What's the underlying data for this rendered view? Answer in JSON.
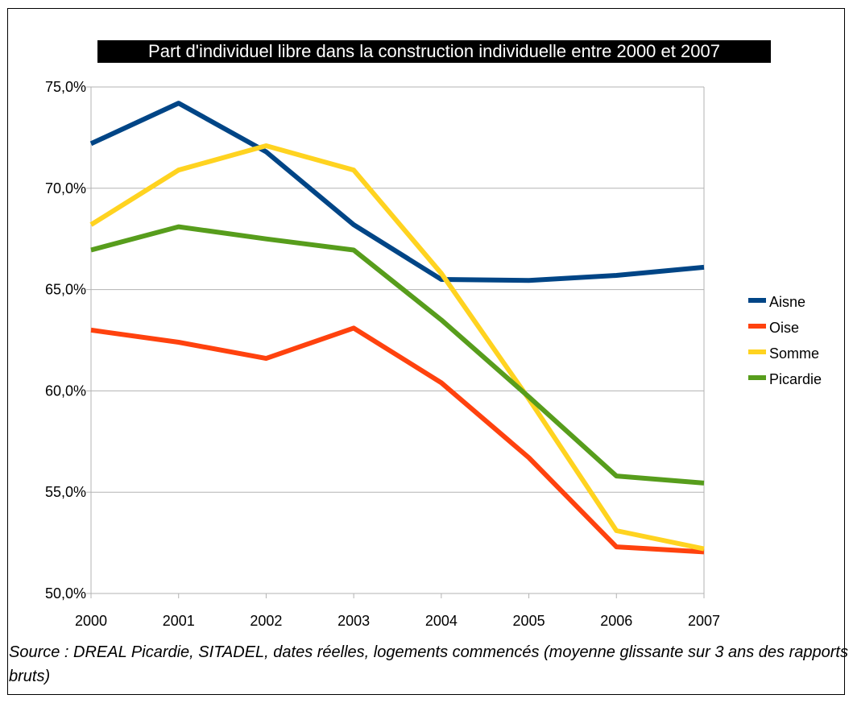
{
  "chart_data": {
    "type": "line",
    "title": "Part d'individuel libre dans la construction individuelle entre 2000 et 2007",
    "categories": [
      "2000",
      "2001",
      "2002",
      "2003",
      "2004",
      "2005",
      "2006",
      "2007"
    ],
    "series": [
      {
        "name": "Aisne",
        "color": "#004586",
        "values": [
          72.2,
          74.2,
          71.8,
          68.2,
          65.5,
          65.45,
          65.7,
          66.1
        ]
      },
      {
        "name": "Oise",
        "color": "#FF420E",
        "values": [
          63.0,
          62.4,
          61.6,
          63.1,
          60.4,
          56.7,
          52.3,
          52.05
        ]
      },
      {
        "name": "Somme",
        "color": "#FFD320",
        "values": [
          68.2,
          70.9,
          72.1,
          70.9,
          65.8,
          59.6,
          53.1,
          52.2
        ]
      },
      {
        "name": "Picardie",
        "color": "#579D1C",
        "values": [
          66.95,
          68.1,
          67.5,
          66.95,
          63.5,
          59.7,
          55.8,
          55.45
        ]
      }
    ],
    "y_ticks": [
      "50,0%",
      "55,0%",
      "60,0%",
      "65,0%",
      "70,0%",
      "75,0%"
    ],
    "ylim": [
      50,
      75
    ],
    "grid": true,
    "legend_position": "right"
  },
  "footer": {
    "source": "Source : DREAL Picardie, SITADEL, dates réelles, logements commencés (moyenne glissante sur 3 ans des rapports bruts)"
  }
}
